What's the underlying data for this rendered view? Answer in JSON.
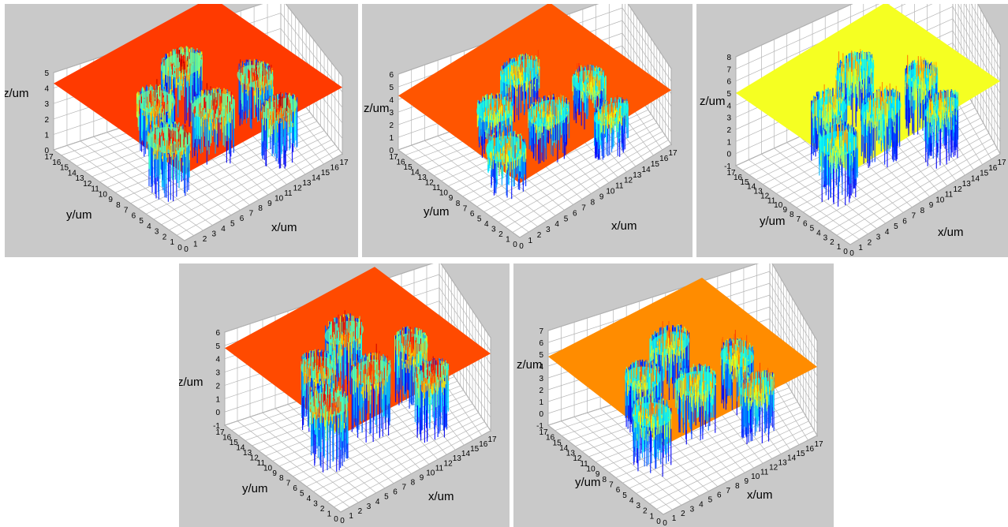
{
  "chart_data": [
    {
      "type": "surface3d",
      "panel": 1,
      "xlabel": "x/um",
      "ylabel": "y/um",
      "zlabel": "z/um",
      "xticks": [
        "0",
        "1",
        "2",
        "3",
        "4",
        "5",
        "6",
        "7",
        "8",
        "9",
        "10",
        "11",
        "12",
        "13",
        "14",
        "15",
        "16",
        "17"
      ],
      "yticks": [
        "0",
        "1",
        "2",
        "3",
        "4",
        "5",
        "6",
        "7",
        "8",
        "9",
        "10",
        "11",
        "12",
        "13",
        "14",
        "15",
        "16",
        "17"
      ],
      "zticks": [
        "0",
        "1",
        "2",
        "3",
        "4",
        "5"
      ],
      "xlim": [
        0,
        17
      ],
      "ylim": [
        0,
        17
      ],
      "zlim": [
        0,
        5
      ],
      "plane_level_z": 4.3,
      "plane_color": "#ff3a00",
      "grid": true
    },
    {
      "type": "surface3d",
      "panel": 2,
      "xlabel": "x/um",
      "ylabel": "y/um",
      "zlabel": "z/um",
      "xticks": [
        "0",
        "1",
        "2",
        "3",
        "4",
        "5",
        "6",
        "7",
        "8",
        "9",
        "10",
        "11",
        "12",
        "13",
        "14",
        "15",
        "16",
        "17"
      ],
      "yticks": [
        "0",
        "1",
        "2",
        "3",
        "4",
        "5",
        "6",
        "7",
        "8",
        "9",
        "10",
        "11",
        "12",
        "13",
        "14",
        "15",
        "16",
        "17"
      ],
      "zticks": [
        "0",
        "1",
        "2",
        "3",
        "4",
        "5",
        "6"
      ],
      "xlim": [
        0,
        17
      ],
      "ylim": [
        0,
        17
      ],
      "zlim": [
        0,
        6
      ],
      "plane_level_z": 4.3,
      "plane_color": "#ff5500",
      "grid": true
    },
    {
      "type": "surface3d",
      "panel": 3,
      "xlabel": "x/um",
      "ylabel": "y/um",
      "zlabel": "z/um",
      "xticks": [
        "0",
        "1",
        "2",
        "3",
        "4",
        "5",
        "6",
        "7",
        "8",
        "9",
        "10",
        "11",
        "12",
        "13",
        "14",
        "15",
        "16",
        "17"
      ],
      "yticks": [
        "0",
        "1",
        "2",
        "3",
        "4",
        "5",
        "6",
        "7",
        "8",
        "9",
        "10",
        "11",
        "12",
        "13",
        "14",
        "15",
        "16",
        "17"
      ],
      "zticks": [
        "-1",
        "0",
        "1",
        "2",
        "3",
        "4",
        "5",
        "6",
        "7",
        "8"
      ],
      "xlim": [
        0,
        17
      ],
      "ylim": [
        0,
        17
      ],
      "zlim": [
        -1,
        8
      ],
      "plane_level_z": 5,
      "plane_color": "#f5ff22",
      "grid": true
    },
    {
      "type": "surface3d",
      "panel": 4,
      "xlabel": "x/um",
      "ylabel": "y/um",
      "zlabel": "z/um",
      "xticks": [
        "0",
        "1",
        "2",
        "3",
        "4",
        "5",
        "6",
        "7",
        "8",
        "9",
        "10",
        "11",
        "12",
        "13",
        "14",
        "15",
        "16",
        "17"
      ],
      "yticks": [
        "0",
        "1",
        "2",
        "3",
        "4",
        "5",
        "6",
        "7",
        "8",
        "9",
        "10",
        "11",
        "12",
        "13",
        "14",
        "15",
        "16",
        "17"
      ],
      "zticks": [
        "-1",
        "0",
        "1",
        "2",
        "3",
        "4",
        "5",
        "6"
      ],
      "xlim": [
        0,
        17
      ],
      "ylim": [
        0,
        17
      ],
      "zlim": [
        -1,
        6
      ],
      "plane_level_z": 4.8,
      "plane_color": "#ff4a00",
      "grid": true
    },
    {
      "type": "surface3d",
      "panel": 5,
      "xlabel": "x/um",
      "ylabel": "y/um",
      "zlabel": "z/um",
      "xticks": [
        "0",
        "1",
        "2",
        "3",
        "4",
        "5",
        "6",
        "7",
        "8",
        "9",
        "10",
        "11",
        "12",
        "13",
        "14",
        "15",
        "16",
        "17"
      ],
      "yticks": [
        "0",
        "1",
        "2",
        "3",
        "4",
        "5",
        "6",
        "7",
        "8",
        "9",
        "10",
        "11",
        "12",
        "13",
        "14",
        "15",
        "16",
        "17"
      ],
      "zticks": [
        "-1",
        "0",
        "1",
        "2",
        "3",
        "4",
        "5",
        "6",
        "7"
      ],
      "xlim": [
        0,
        17
      ],
      "ylim": [
        0,
        17
      ],
      "zlim": [
        -1,
        7
      ],
      "plane_level_z": 4.8,
      "plane_color": "#ff8c00",
      "grid": true
    }
  ]
}
